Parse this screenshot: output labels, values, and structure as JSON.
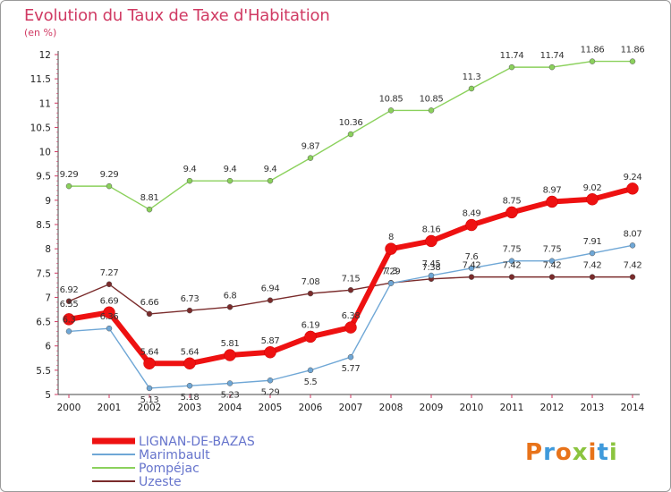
{
  "header": {
    "title": "Evolution du Taux de Taxe d'Habitation",
    "subtitle": "(en %)"
  },
  "logo": {
    "text": "Proxiti",
    "colors": [
      "#e8731a",
      "#3f9adb",
      "#e8731a",
      "#8bc43f",
      "#e8731a",
      "#3f9adb",
      "#8bc43f"
    ]
  },
  "chart_data": {
    "type": "line",
    "title": "Evolution du Taux de Taxe d'Habitation",
    "ylabel": "(en %)",
    "xlabel": "",
    "x": [
      "2000",
      "2001",
      "2002",
      "2003",
      "2004",
      "2005",
      "2006",
      "2007",
      "2008",
      "2009",
      "2010",
      "2011",
      "2012",
      "2013",
      "2014"
    ],
    "ylim": [
      5,
      12
    ],
    "yticks": [
      "5",
      "5.5",
      "6",
      "6.5",
      "7",
      "7.5",
      "8",
      "8.5",
      "9",
      "9.5",
      "10",
      "10.5",
      "11",
      "11.5",
      "12"
    ],
    "grid": false,
    "legend_position": "bottom-left",
    "series": [
      {
        "name": "LIGNAN-DE-BAZAS",
        "color": "#ee1111",
        "values": [
          6.55,
          6.69,
          5.64,
          5.64,
          5.81,
          5.87,
          6.19,
          6.38,
          8,
          8.16,
          8.49,
          8.75,
          8.97,
          9.02,
          9.24
        ],
        "labels": [
          "6.55",
          "6.69",
          "5.64",
          "5.64",
          "5.81",
          "5.87",
          "6.19",
          "6.38",
          "8",
          "8.16",
          "8.49",
          "8.75",
          "8.97",
          "9.02",
          "9.24"
        ]
      },
      {
        "name": "Marimbault",
        "color": "#6fa7d6",
        "values": [
          6.3,
          6.36,
          5.13,
          5.18,
          5.23,
          5.29,
          5.5,
          5.77,
          7.29,
          7.45,
          7.6,
          7.75,
          7.75,
          7.91,
          8.07
        ],
        "labels": [
          "6.3",
          "6.36",
          "5.13",
          "5.18",
          "5.23",
          "5.29",
          "5.5",
          "5.77",
          "7.29",
          "7.45",
          "7.6",
          "7.75",
          "7.75",
          "7.91",
          "8.07"
        ]
      },
      {
        "name": "Pompéjac",
        "color": "#8bd15c",
        "values": [
          9.29,
          9.29,
          8.81,
          9.4,
          9.4,
          9.4,
          9.87,
          10.36,
          10.85,
          10.85,
          11.3,
          11.74,
          11.74,
          11.86,
          11.86
        ],
        "labels": [
          "9.29",
          "9.29",
          "8.81",
          "9.4",
          "9.4",
          "9.4",
          "9.87",
          "10.36",
          "10.85",
          "10.85",
          "11.3",
          "11.74",
          "11.74",
          "11.86",
          "11.86"
        ]
      },
      {
        "name": "Uzeste",
        "color": "#7a2b2b",
        "values": [
          6.92,
          7.27,
          6.66,
          6.73,
          6.8,
          6.94,
          7.08,
          7.15,
          7.3,
          7.38,
          7.42,
          7.42,
          7.42,
          7.42,
          7.42
        ],
        "labels": [
          "6.92",
          "7.27",
          "6.66",
          "6.73",
          "6.8",
          "6.94",
          "7.08",
          "7.15",
          "7.3",
          "7.38",
          "7.42",
          "7.42",
          "7.42",
          "7.42",
          "7.42"
        ]
      }
    ]
  }
}
